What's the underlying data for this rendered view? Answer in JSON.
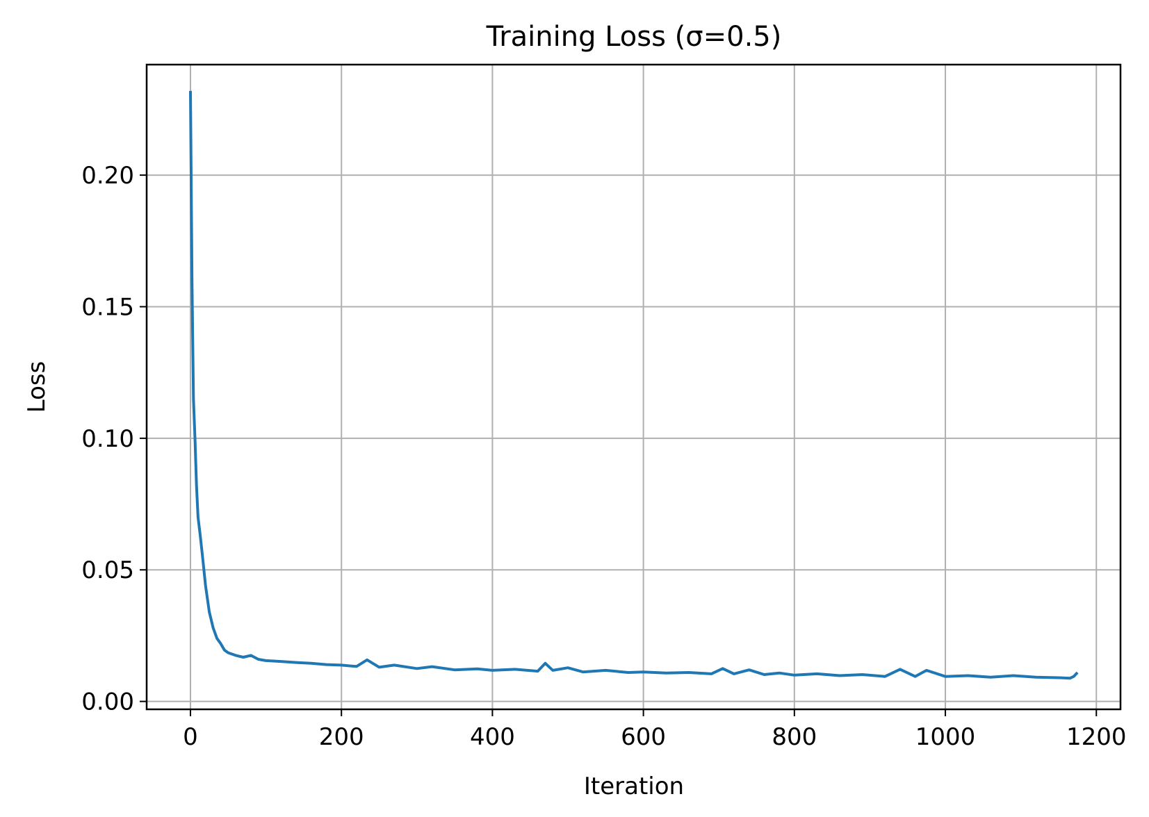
{
  "chart_data": {
    "type": "line",
    "title": "Training Loss (σ=0.5)",
    "xlabel": "Iteration",
    "ylabel": "Loss",
    "xlim": [
      -58,
      1232
    ],
    "ylim": [
      -0.003,
      0.242
    ],
    "x_ticks": [
      0,
      200,
      400,
      600,
      800,
      1000,
      1200
    ],
    "x_tick_labels": [
      "0",
      "200",
      "400",
      "600",
      "800",
      "1000",
      "1200"
    ],
    "y_ticks": [
      0.0,
      0.05,
      0.1,
      0.15,
      0.2
    ],
    "y_tick_labels": [
      "0.00",
      "0.05",
      "0.10",
      "0.15",
      "0.20"
    ],
    "grid": true,
    "series": [
      {
        "color": "#1f77b4",
        "x": [
          0,
          2,
          4,
          6,
          8,
          10,
          13,
          16,
          20,
          25,
          30,
          35,
          40,
          45,
          50,
          60,
          70,
          80,
          90,
          100,
          120,
          140,
          160,
          180,
          200,
          220,
          234,
          250,
          270,
          300,
          320,
          350,
          380,
          400,
          430,
          460,
          470,
          480,
          500,
          520,
          550,
          580,
          600,
          630,
          660,
          690,
          705,
          720,
          740,
          760,
          780,
          800,
          830,
          860,
          890,
          920,
          940,
          960,
          975,
          1000,
          1030,
          1060,
          1090,
          1120,
          1150,
          1165,
          1170,
          1175
        ],
        "y": [
          0.232,
          0.16,
          0.115,
          0.1,
          0.082,
          0.07,
          0.063,
          0.055,
          0.044,
          0.034,
          0.028,
          0.024,
          0.022,
          0.0195,
          0.0185,
          0.0175,
          0.0168,
          0.0175,
          0.016,
          0.0155,
          0.0152,
          0.0148,
          0.0145,
          0.014,
          0.0138,
          0.0133,
          0.0158,
          0.013,
          0.0138,
          0.0125,
          0.0132,
          0.012,
          0.0124,
          0.0118,
          0.0122,
          0.0115,
          0.0145,
          0.0118,
          0.0128,
          0.0112,
          0.0118,
          0.011,
          0.0112,
          0.0108,
          0.011,
          0.0105,
          0.0125,
          0.0105,
          0.012,
          0.0102,
          0.0108,
          0.01,
          0.0105,
          0.0098,
          0.0102,
          0.0095,
          0.0122,
          0.0095,
          0.0118,
          0.0095,
          0.0098,
          0.0092,
          0.0098,
          0.0092,
          0.009,
          0.0088,
          0.0095,
          0.011
        ]
      }
    ]
  }
}
